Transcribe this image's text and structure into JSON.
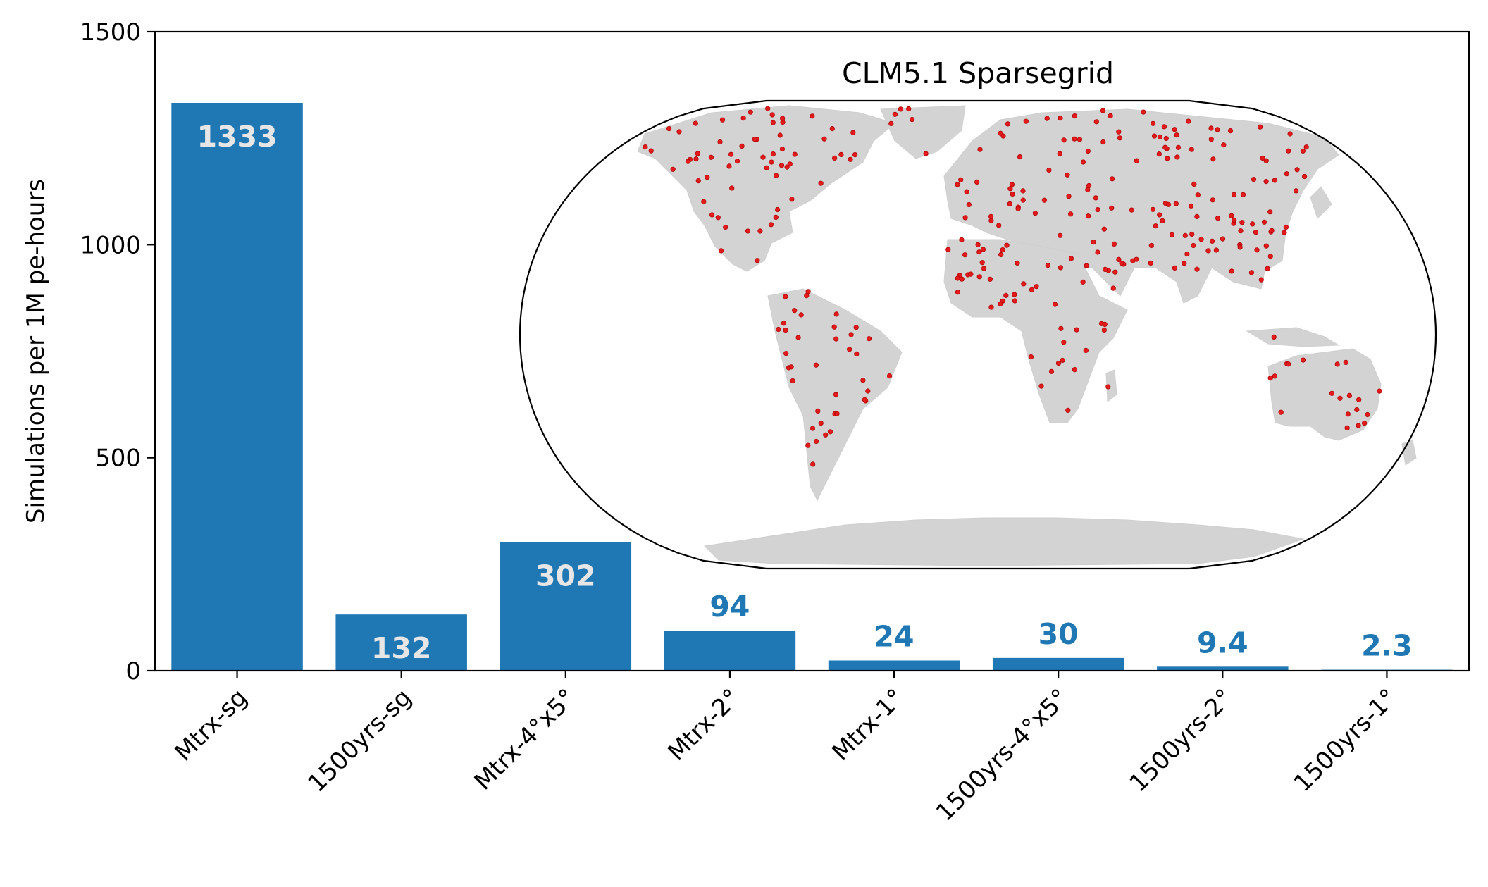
{
  "chart_data": {
    "type": "bar",
    "categories": [
      "Mtrx-sg",
      "1500yrs-sg",
      "Mtrx-4°x5°",
      "Mtrx-2°",
      "Mtrx-1°",
      "1500yrs-4°x5°",
      "1500yrs-2°",
      "1500yrs-1°"
    ],
    "values": [
      1333,
      132,
      302,
      94,
      24,
      30,
      9.4,
      2.3
    ],
    "data_labels": [
      "1333",
      "132",
      "302",
      "94",
      "24",
      "30",
      "9.4",
      "2.3"
    ],
    "title": "",
    "xlabel": "",
    "ylabel": "Simulations per 1M pe-hours",
    "ylim": [
      0,
      1500
    ],
    "yticks": [
      0,
      500,
      1000,
      1500
    ],
    "ytick_labels": [
      "0",
      "500",
      "1000",
      "1500"
    ],
    "grid": false,
    "bar_color": "#1f77b4",
    "inset": {
      "type": "map",
      "title": "CLM5.1 Sparsegrid",
      "land_color": "#d3d3d3",
      "point_color": "#e41a1c"
    }
  }
}
